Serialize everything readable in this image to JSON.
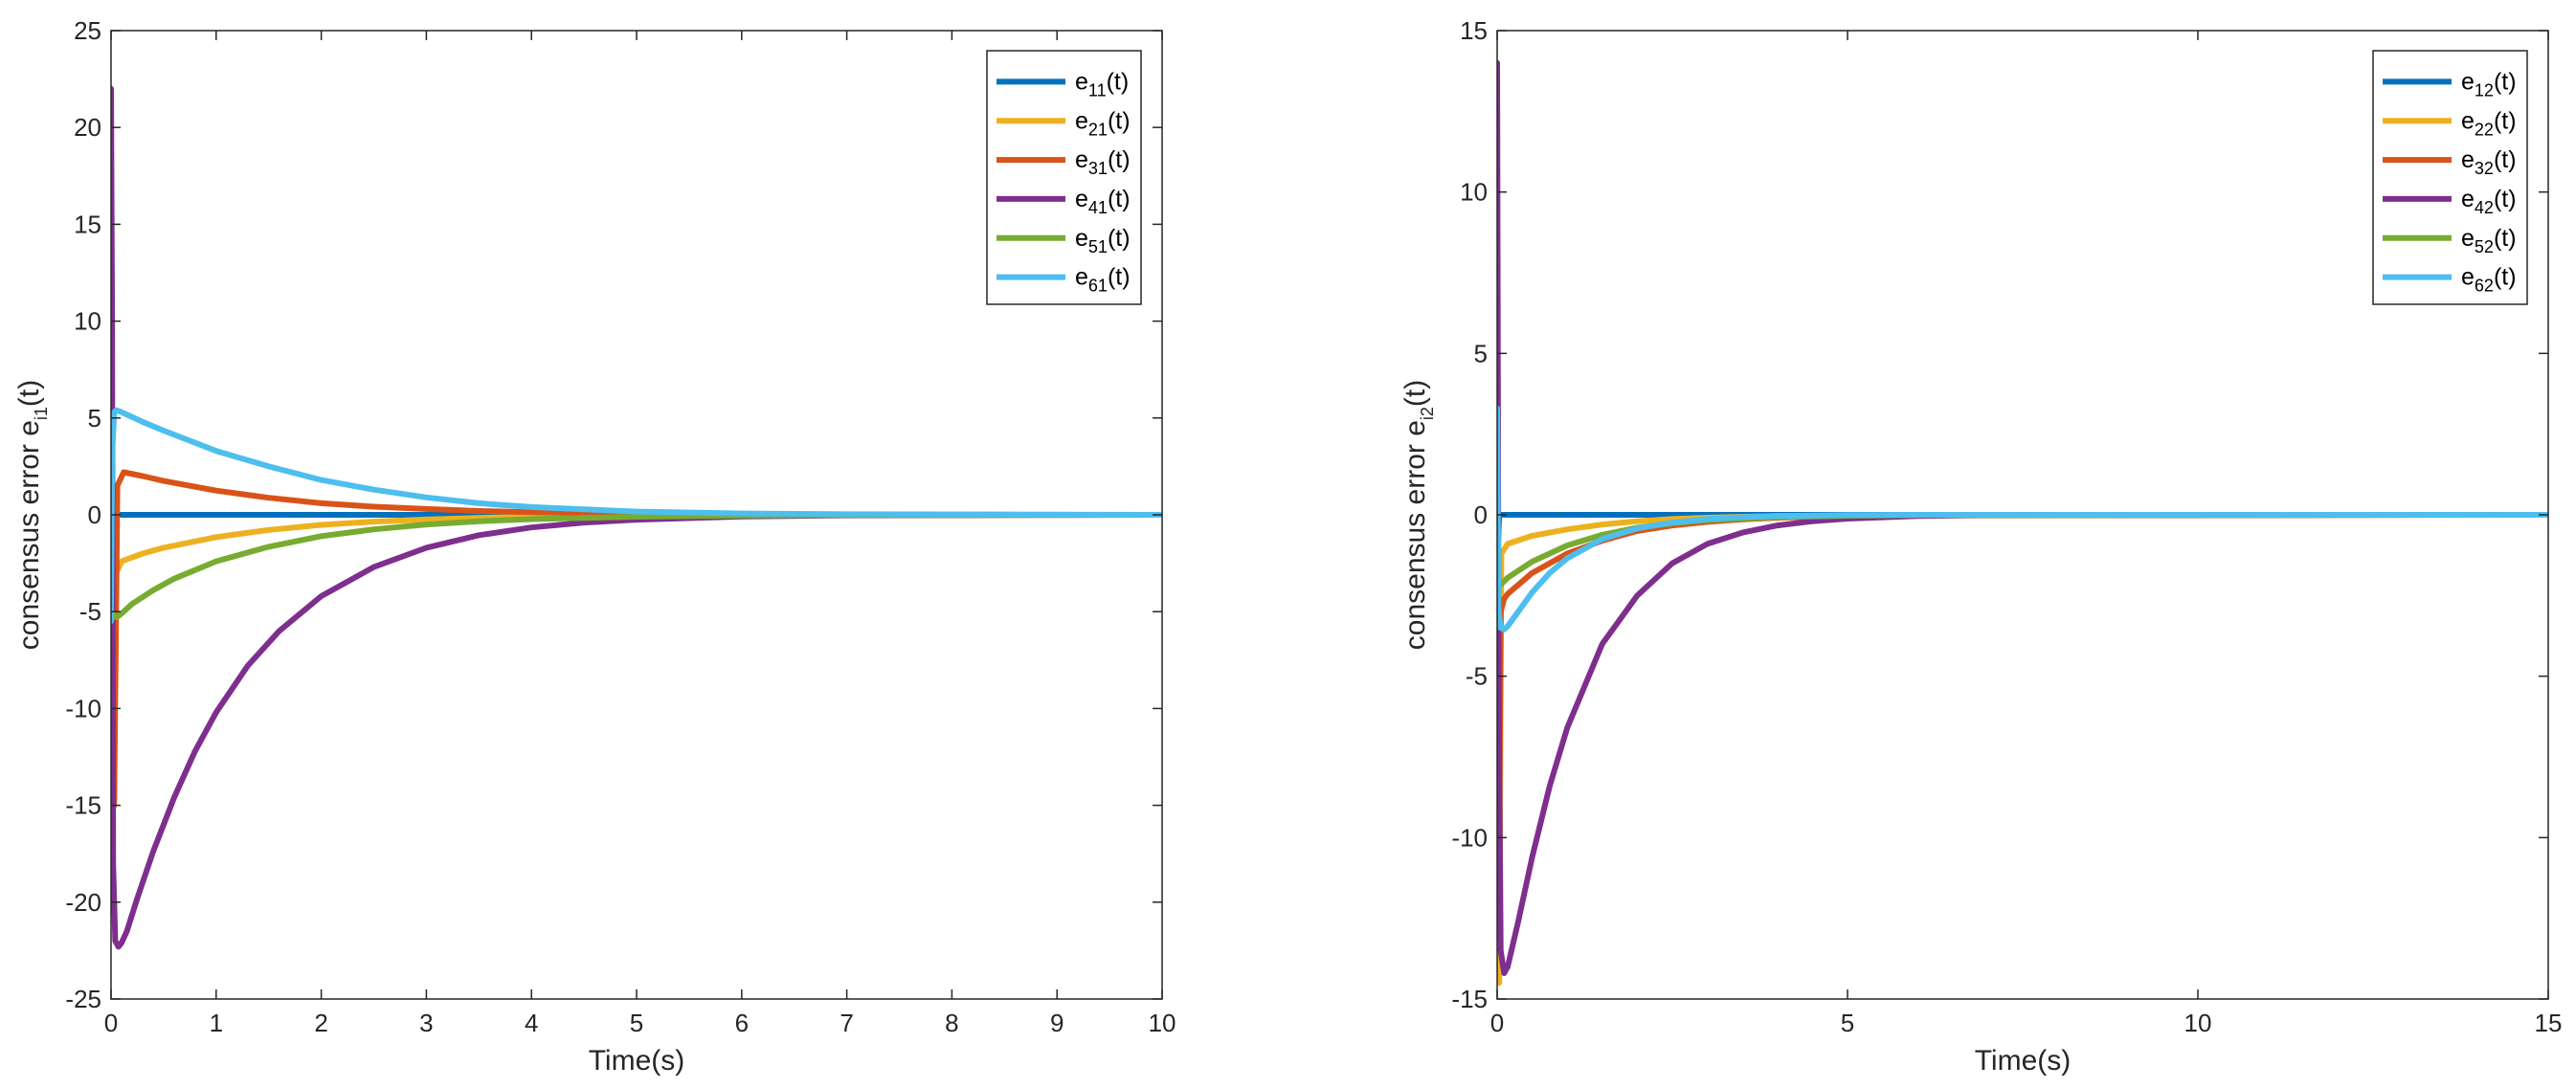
{
  "chart_data": [
    {
      "type": "line",
      "xlabel": "Time(s)",
      "ylabel_main": "consensus error e",
      "ylabel_sub": "i1",
      "ylabel_tail": "(t)",
      "xlim": [
        0,
        10
      ],
      "ylim": [
        -25,
        25
      ],
      "x_ticks": [
        0,
        1,
        2,
        3,
        4,
        5,
        6,
        7,
        8,
        9,
        10
      ],
      "y_ticks": [
        -25,
        -20,
        -15,
        -10,
        -5,
        0,
        5,
        10,
        15,
        20,
        25
      ],
      "grid": false,
      "legend_position": "top-right",
      "series": [
        {
          "legend_main": "e",
          "legend_sub": "11",
          "legend_tail": "(t)",
          "color": "#0072BD",
          "x": [
            0,
            0.01,
            0.03,
            0.1,
            10
          ],
          "y": [
            8,
            -2,
            0,
            0,
            0
          ]
        },
        {
          "legend_main": "e",
          "legend_sub": "21",
          "legend_tail": "(t)",
          "color": "#EDB120",
          "x": [
            0,
            0.02,
            0.05,
            0.1,
            0.3,
            0.5,
            1,
            1.5,
            2,
            2.5,
            3,
            3.5,
            4,
            5,
            6,
            7,
            10
          ],
          "y": [
            -5,
            -12,
            -3,
            -2.4,
            -2.0,
            -1.7,
            -1.15,
            -0.78,
            -0.52,
            -0.35,
            -0.24,
            -0.16,
            -0.11,
            -0.05,
            -0.02,
            -0.01,
            0
          ]
        },
        {
          "legend_main": "e",
          "legend_sub": "31",
          "legend_tail": "(t)",
          "color": "#D95319",
          "x": [
            0,
            0.03,
            0.06,
            0.12,
            0.3,
            0.5,
            1,
            1.5,
            2,
            2.5,
            3,
            3.5,
            4,
            5,
            6,
            7,
            10
          ],
          "y": [
            -5,
            -15,
            1.5,
            2.2,
            2.0,
            1.75,
            1.25,
            0.88,
            0.6,
            0.42,
            0.3,
            0.2,
            0.14,
            0.06,
            0.03,
            0.01,
            0
          ]
        },
        {
          "legend_main": "e",
          "legend_sub": "41",
          "legend_tail": "(t)",
          "color": "#7E2F8E",
          "x": [
            0,
            0.01,
            0.02,
            0.04,
            0.07,
            0.1,
            0.15,
            0.25,
            0.4,
            0.6,
            0.8,
            1,
            1.3,
            1.6,
            2,
            2.5,
            3,
            3.5,
            4,
            4.5,
            5,
            6,
            7,
            10
          ],
          "y": [
            22,
            10,
            -18,
            -22,
            -22.3,
            -22.1,
            -21.5,
            -19.8,
            -17.4,
            -14.6,
            -12.2,
            -10.2,
            -7.8,
            -6.0,
            -4.2,
            -2.7,
            -1.7,
            -1.05,
            -0.65,
            -0.4,
            -0.25,
            -0.09,
            -0.03,
            0
          ]
        },
        {
          "legend_main": "e",
          "legend_sub": "51",
          "legend_tail": "(t)",
          "color": "#77AC30",
          "x": [
            0,
            0.05,
            0.1,
            0.2,
            0.4,
            0.6,
            1,
            1.5,
            2,
            2.5,
            3,
            3.5,
            4,
            5,
            6,
            7,
            10
          ],
          "y": [
            -5,
            -5.3,
            -5.1,
            -4.6,
            -3.9,
            -3.3,
            -2.4,
            -1.65,
            -1.1,
            -0.75,
            -0.5,
            -0.33,
            -0.22,
            -0.1,
            -0.04,
            -0.02,
            0
          ]
        },
        {
          "legend_main": "e",
          "legend_sub": "61",
          "legend_tail": "(t)",
          "color": "#4DBEEE",
          "x": [
            0,
            0.01,
            0.03,
            0.05,
            0.1,
            0.3,
            0.5,
            1,
            1.5,
            2,
            2.5,
            3,
            3.5,
            4,
            5,
            6,
            7,
            10
          ],
          "y": [
            -5.5,
            3,
            5.3,
            5.4,
            5.3,
            4.8,
            4.35,
            3.3,
            2.5,
            1.8,
            1.3,
            0.9,
            0.6,
            0.4,
            0.17,
            0.07,
            0.03,
            0
          ]
        }
      ]
    },
    {
      "type": "line",
      "xlabel": "Time(s)",
      "ylabel_main": "consensus error e",
      "ylabel_sub": "i2",
      "ylabel_tail": "(t)",
      "xlim": [
        0,
        15
      ],
      "ylim": [
        -15,
        15
      ],
      "x_ticks": [
        0,
        5,
        10,
        15
      ],
      "y_ticks": [
        -15,
        -10,
        -5,
        0,
        5,
        10,
        15
      ],
      "grid": false,
      "legend_position": "top-right",
      "series": [
        {
          "legend_main": "e",
          "legend_sub": "12",
          "legend_tail": "(t)",
          "color": "#0072BD",
          "x": [
            0,
            0.01,
            0.03,
            0.1,
            15
          ],
          "y": [
            3,
            -1,
            0,
            0,
            0
          ]
        },
        {
          "legend_main": "e",
          "legend_sub": "22",
          "legend_tail": "(t)",
          "color": "#EDB120",
          "x": [
            0,
            0.03,
            0.06,
            0.15,
            0.5,
            1,
            1.5,
            2,
            2.5,
            3,
            3.5,
            4,
            5,
            6,
            15
          ],
          "y": [
            -10,
            -14.5,
            -1.2,
            -0.9,
            -0.65,
            -0.45,
            -0.3,
            -0.2,
            -0.13,
            -0.09,
            -0.06,
            -0.04,
            -0.02,
            -0.01,
            0
          ]
        },
        {
          "legend_main": "e",
          "legend_sub": "32",
          "legend_tail": "(t)",
          "color": "#D95319",
          "x": [
            0,
            0.02,
            0.05,
            0.1,
            0.15,
            0.5,
            1,
            1.5,
            2,
            2.5,
            3,
            3.5,
            4,
            5,
            6,
            15
          ],
          "y": [
            7,
            -13,
            -3,
            -2.6,
            -2.45,
            -1.8,
            -1.2,
            -0.8,
            -0.5,
            -0.33,
            -0.22,
            -0.14,
            -0.09,
            -0.04,
            -0.02,
            0
          ]
        },
        {
          "legend_main": "e",
          "legend_sub": "42",
          "legend_tail": "(t)",
          "color": "#7E2F8E",
          "x": [
            0,
            0.02,
            0.05,
            0.1,
            0.15,
            0.3,
            0.5,
            0.75,
            1,
            1.5,
            2,
            2.5,
            3,
            3.5,
            4,
            4.5,
            5,
            6,
            7,
            15
          ],
          "y": [
            14,
            -5,
            -13.5,
            -14.2,
            -14.0,
            -12.6,
            -10.6,
            -8.4,
            -6.6,
            -4.0,
            -2.5,
            -1.5,
            -0.9,
            -0.55,
            -0.33,
            -0.2,
            -0.12,
            -0.04,
            -0.01,
            0
          ]
        },
        {
          "legend_main": "e",
          "legend_sub": "52",
          "legend_tail": "(t)",
          "color": "#77AC30",
          "x": [
            0,
            0.03,
            0.08,
            0.15,
            0.5,
            1,
            1.5,
            2,
            2.5,
            3,
            3.5,
            4,
            5,
            6,
            15
          ],
          "y": [
            -1.5,
            -2.2,
            -2.1,
            -1.95,
            -1.45,
            -0.95,
            -0.62,
            -0.4,
            -0.26,
            -0.17,
            -0.11,
            -0.07,
            -0.03,
            -0.01,
            0
          ]
        },
        {
          "legend_main": "e",
          "legend_sub": "62",
          "legend_tail": "(t)",
          "color": "#4DBEEE",
          "x": [
            0,
            0.02,
            0.05,
            0.1,
            0.15,
            0.3,
            0.5,
            0.75,
            1,
            1.5,
            2,
            2.5,
            3,
            3.5,
            4,
            5,
            6,
            15
          ],
          "y": [
            3.3,
            -3,
            -3.5,
            -3.55,
            -3.45,
            -3.0,
            -2.4,
            -1.8,
            -1.35,
            -0.75,
            -0.42,
            -0.24,
            -0.13,
            -0.07,
            -0.04,
            -0.01,
            0,
            0
          ]
        }
      ]
    }
  ]
}
